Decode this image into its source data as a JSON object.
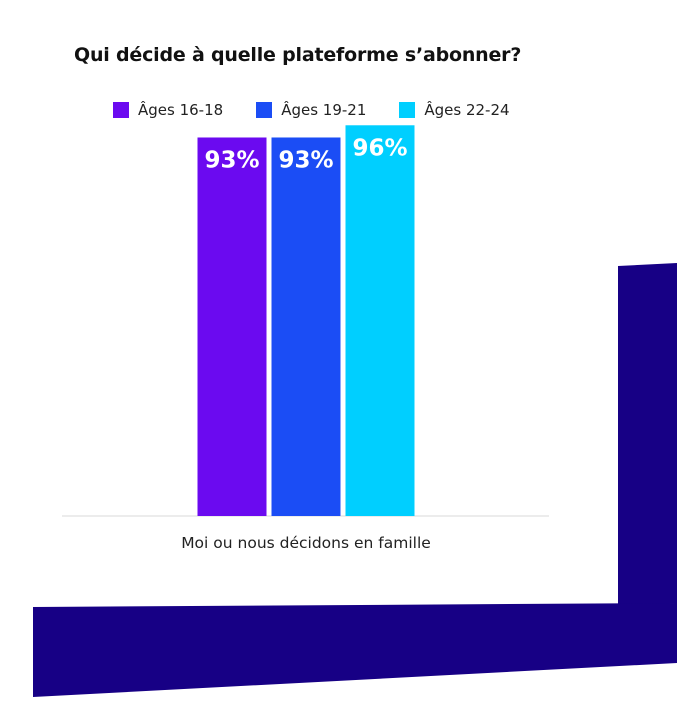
{
  "colors": {
    "background": "#ffffff",
    "decor": "#170085",
    "baseline": "#d9d9d9"
  },
  "chart_data": {
    "type": "bar",
    "title": "Qui décide à quelle plateforme s’abonner?",
    "categories": [
      "Moi ou nous décidons en famille"
    ],
    "series": [
      {
        "name": "Âges 16-18",
        "values": [
          93
        ],
        "labels": [
          "93%"
        ],
        "color": "#6b0af0"
      },
      {
        "name": "Âges 19-21",
        "values": [
          93
        ],
        "labels": [
          "93%"
        ],
        "color": "#1b4df5"
      },
      {
        "name": "Âges 22-24",
        "values": [
          96
        ],
        "labels": [
          "96%"
        ],
        "color": "#00cfff"
      }
    ],
    "xlabel": "",
    "ylabel": "",
    "ylim": [
      0,
      100
    ],
    "grid": false,
    "legend": "top"
  }
}
